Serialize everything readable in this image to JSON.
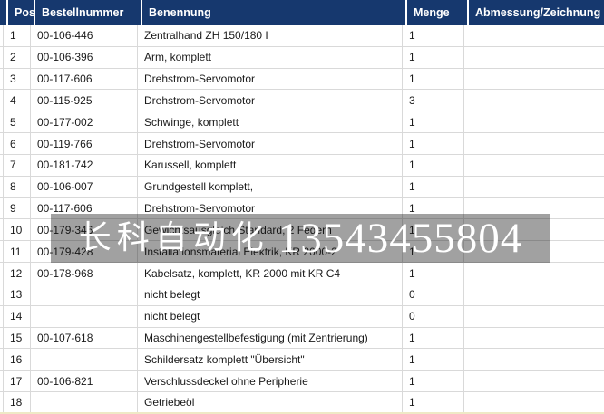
{
  "table": {
    "columns": [
      {
        "key": "pos",
        "label": "Pos"
      },
      {
        "key": "best",
        "label": "Bestellnummer"
      },
      {
        "key": "ben",
        "label": "Benennung"
      },
      {
        "key": "men",
        "label": "Menge"
      },
      {
        "key": "abm",
        "label": "Abmessung/Zeichnung"
      }
    ],
    "rows": [
      {
        "pos": "1",
        "best": "00-106-446",
        "ben": "Zentralhand ZH 150/180 I",
        "men": "1",
        "abm": ""
      },
      {
        "pos": "2",
        "best": "00-106-396",
        "ben": "Arm, komplett",
        "men": "1",
        "abm": ""
      },
      {
        "pos": "3",
        "best": "00-117-606",
        "ben": "Drehstrom-Servomotor",
        "men": "1",
        "abm": ""
      },
      {
        "pos": "4",
        "best": "00-115-925",
        "ben": "Drehstrom-Servomotor",
        "men": "3",
        "abm": ""
      },
      {
        "pos": "5",
        "best": "00-177-002",
        "ben": "Schwinge, komplett",
        "men": "1",
        "abm": ""
      },
      {
        "pos": "6",
        "best": "00-119-766",
        "ben": "Drehstrom-Servomotor",
        "men": "1",
        "abm": ""
      },
      {
        "pos": "7",
        "best": "00-181-742",
        "ben": "Karussell, komplett",
        "men": "1",
        "abm": ""
      },
      {
        "pos": "8",
        "best": "00-106-007",
        "ben": "Grundgestell komplett,",
        "men": "1",
        "abm": ""
      },
      {
        "pos": "9",
        "best": "00-117-606",
        "ben": "Drehstrom-Servomotor",
        "men": "1",
        "abm": ""
      },
      {
        "pos": "10",
        "best": "00-179-346",
        "ben": "Gewichtsausgleich Standard, 2 Federn",
        "men": "1",
        "abm": ""
      },
      {
        "pos": "11",
        "best": "00-179-428",
        "ben": "Installationsmaterial Elektrik, KR 2000-2",
        "men": "1",
        "abm": ""
      },
      {
        "pos": "12",
        "best": "00-178-968",
        "ben": "Kabelsatz, komplett, KR 2000 mit KR C4",
        "men": "1",
        "abm": ""
      },
      {
        "pos": "13",
        "best": "",
        "ben": "nicht belegt",
        "men": "0",
        "abm": ""
      },
      {
        "pos": "14",
        "best": "",
        "ben": "nicht belegt",
        "men": "0",
        "abm": ""
      },
      {
        "pos": "15",
        "best": "00-107-618",
        "ben": "Maschinengestellbefestigung (mit Zentrierung)",
        "men": "1",
        "abm": ""
      },
      {
        "pos": "16",
        "best": "",
        "ben": "Schildersatz komplett \"Übersicht\"",
        "men": "1",
        "abm": ""
      },
      {
        "pos": "17",
        "best": "00-106-821",
        "ben": "Verschlussdeckel ohne Peripherie",
        "men": "1",
        "abm": ""
      },
      {
        "pos": "18",
        "best": "",
        "ben": "Getriebeöl",
        "men": "1",
        "abm": ""
      }
    ]
  },
  "watermark": {
    "company": "长科自动化",
    "phone": "13543455804"
  },
  "colors": {
    "header_bg": "#16386E",
    "header_text": "#FFFFFF",
    "gridline": "#D9D9D9",
    "watermark_overlay": "rgba(20,20,20,0.40)",
    "watermark_text": "#FFFFFF"
  }
}
